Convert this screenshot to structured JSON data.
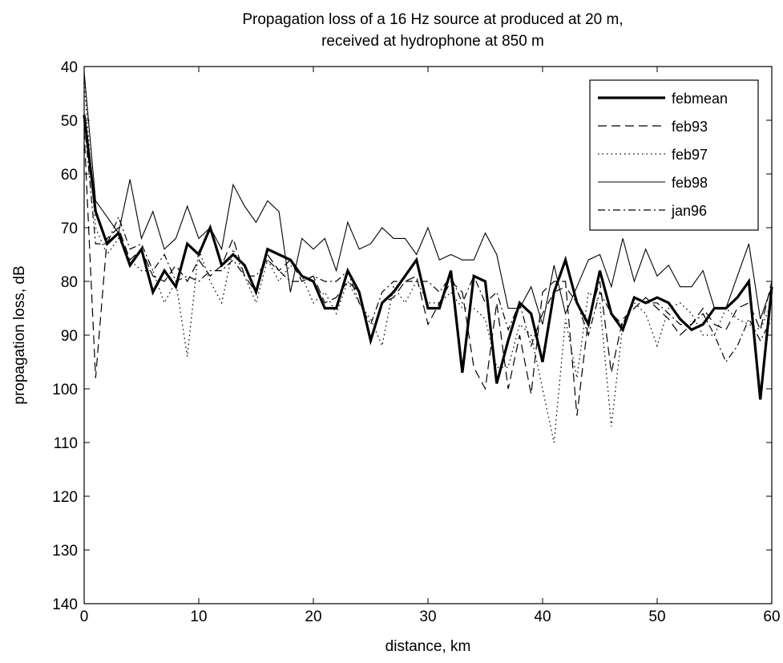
{
  "chart_data": {
    "type": "line",
    "title_line1": "Propagation loss of a 16 Hz source at produced at 20 m,",
    "title_line2": "received at hydrophone at 850 m",
    "xlabel": "distance, km",
    "ylabel": "propagation loss, dB",
    "xlim": [
      0,
      60
    ],
    "ylim": [
      140,
      40
    ],
    "y_reversed": true,
    "grid": false,
    "legend_position": "top-right",
    "xticks": [
      0,
      10,
      20,
      30,
      40,
      50,
      60
    ],
    "yticks": [
      40,
      50,
      60,
      70,
      80,
      90,
      100,
      110,
      120,
      130,
      140
    ],
    "series": [
      {
        "name": "febmean",
        "style": "thick-solid",
        "x": [
          0,
          1,
          2,
          3,
          4,
          5,
          6,
          7,
          8,
          9,
          10,
          11,
          12,
          13,
          14,
          15,
          16,
          17,
          18,
          19,
          20,
          21,
          22,
          23,
          24,
          25,
          26,
          27,
          28,
          29,
          30,
          31,
          32,
          33,
          34,
          35,
          36,
          37,
          38,
          39,
          40,
          41,
          42,
          43,
          44,
          45,
          46,
          47,
          48,
          49,
          50,
          51,
          52,
          53,
          54,
          55,
          56,
          57,
          58,
          59,
          60
        ],
        "y": [
          49,
          67,
          73,
          71,
          77,
          74,
          82,
          78,
          81,
          73,
          75,
          70,
          77,
          75,
          77,
          82,
          74,
          75,
          76,
          79,
          80,
          85,
          85,
          78,
          82,
          91,
          84,
          82,
          79,
          76,
          85,
          85,
          78,
          97,
          79,
          80,
          99,
          91,
          84,
          86,
          95,
          82,
          76,
          84,
          88,
          78,
          86,
          89,
          83,
          84,
          83,
          84,
          87,
          89,
          88,
          85,
          85,
          83,
          80,
          102,
          81
        ]
      },
      {
        "name": "feb93",
        "style": "dashed",
        "x": [
          0,
          1,
          2,
          3,
          4,
          5,
          6,
          7,
          8,
          9,
          10,
          11,
          12,
          13,
          14,
          15,
          16,
          17,
          18,
          19,
          20,
          21,
          22,
          23,
          24,
          25,
          26,
          27,
          28,
          29,
          30,
          31,
          32,
          33,
          34,
          35,
          36,
          37,
          38,
          39,
          40,
          41,
          42,
          43,
          44,
          45,
          46,
          47,
          48,
          49,
          50,
          51,
          52,
          53,
          54,
          55,
          56,
          57,
          58,
          59,
          60
        ],
        "y": [
          52,
          98,
          72,
          70,
          76,
          74,
          79,
          80,
          77,
          80,
          76,
          79,
          77,
          72,
          79,
          82,
          75,
          78,
          76,
          80,
          79,
          84,
          83,
          80,
          82,
          91,
          84,
          83,
          80,
          79,
          88,
          84,
          80,
          82,
          96,
          100,
          84,
          100,
          90,
          101,
          82,
          80,
          80,
          105,
          87,
          80,
          97,
          87,
          85,
          83,
          85,
          87,
          90,
          88,
          85,
          88,
          89,
          85,
          84,
          89,
          80
        ]
      },
      {
        "name": "feb97",
        "style": "dotted",
        "x": [
          0,
          1,
          2,
          3,
          4,
          5,
          6,
          7,
          8,
          9,
          10,
          11,
          12,
          13,
          14,
          15,
          16,
          17,
          18,
          19,
          20,
          21,
          22,
          23,
          24,
          25,
          26,
          27,
          28,
          29,
          30,
          31,
          32,
          33,
          34,
          35,
          36,
          37,
          38,
          39,
          40,
          41,
          42,
          43,
          44,
          45,
          46,
          47,
          48,
          49,
          50,
          51,
          52,
          53,
          54,
          55,
          56,
          57,
          58,
          59,
          60
        ],
        "y": [
          43,
          70,
          75,
          72,
          76,
          78,
          78,
          84,
          80,
          94,
          74,
          80,
          84,
          74,
          79,
          84,
          76,
          80,
          77,
          79,
          84,
          82,
          86,
          80,
          84,
          87,
          92,
          81,
          84,
          80,
          84,
          84,
          82,
          85,
          85,
          87,
          96,
          96,
          88,
          90,
          100,
          110,
          87,
          98,
          82,
          84,
          107,
          88,
          84,
          86,
          92,
          85,
          84,
          86,
          90,
          90,
          85,
          87,
          88,
          89,
          84
        ]
      },
      {
        "name": "feb98",
        "style": "thin-solid",
        "x": [
          0,
          1,
          2,
          3,
          4,
          5,
          6,
          7,
          8,
          9,
          10,
          11,
          12,
          13,
          14,
          15,
          16,
          17,
          18,
          19,
          20,
          21,
          22,
          23,
          24,
          25,
          26,
          27,
          28,
          29,
          30,
          31,
          32,
          33,
          34,
          35,
          36,
          37,
          38,
          39,
          40,
          41,
          42,
          43,
          44,
          45,
          46,
          47,
          48,
          49,
          50,
          51,
          52,
          53,
          54,
          55,
          56,
          57,
          58,
          59,
          60
        ],
        "y": [
          41,
          65,
          68,
          71,
          61,
          72,
          67,
          74,
          72,
          66,
          72,
          70,
          74,
          62,
          66,
          69,
          65,
          67,
          82,
          72,
          74,
          72,
          78,
          69,
          74,
          73,
          70,
          72,
          72,
          75,
          70,
          76,
          75,
          76,
          76,
          71,
          75,
          85,
          85,
          81,
          88,
          77,
          86,
          81,
          76,
          75,
          81,
          72,
          80,
          74,
          79,
          77,
          81,
          81,
          78,
          85,
          85,
          79,
          73,
          87,
          81
        ]
      },
      {
        "name": "jan96",
        "style": "dash-dot",
        "x": [
          0,
          1,
          2,
          3,
          4,
          5,
          6,
          7,
          8,
          9,
          10,
          11,
          12,
          13,
          14,
          15,
          16,
          17,
          18,
          19,
          20,
          21,
          22,
          23,
          24,
          25,
          26,
          27,
          28,
          29,
          30,
          31,
          32,
          33,
          34,
          35,
          36,
          37,
          38,
          39,
          40,
          41,
          42,
          43,
          44,
          45,
          46,
          47,
          48,
          49,
          50,
          51,
          52,
          53,
          54,
          55,
          56,
          57,
          58,
          59,
          60
        ],
        "y": [
          50,
          73,
          73,
          68,
          74,
          73,
          78,
          75,
          80,
          79,
          80,
          78,
          78,
          76,
          79,
          79,
          76,
          78,
          80,
          80,
          79,
          80,
          80,
          78,
          84,
          88,
          82,
          80,
          80,
          80,
          80,
          82,
          79,
          84,
          79,
          84,
          82,
          89,
          84,
          92,
          86,
          82,
          81,
          84,
          90,
          82,
          86,
          88,
          83,
          84,
          84,
          86,
          88,
          88,
          86,
          90,
          95,
          92,
          87,
          91,
          87
        ]
      }
    ]
  }
}
